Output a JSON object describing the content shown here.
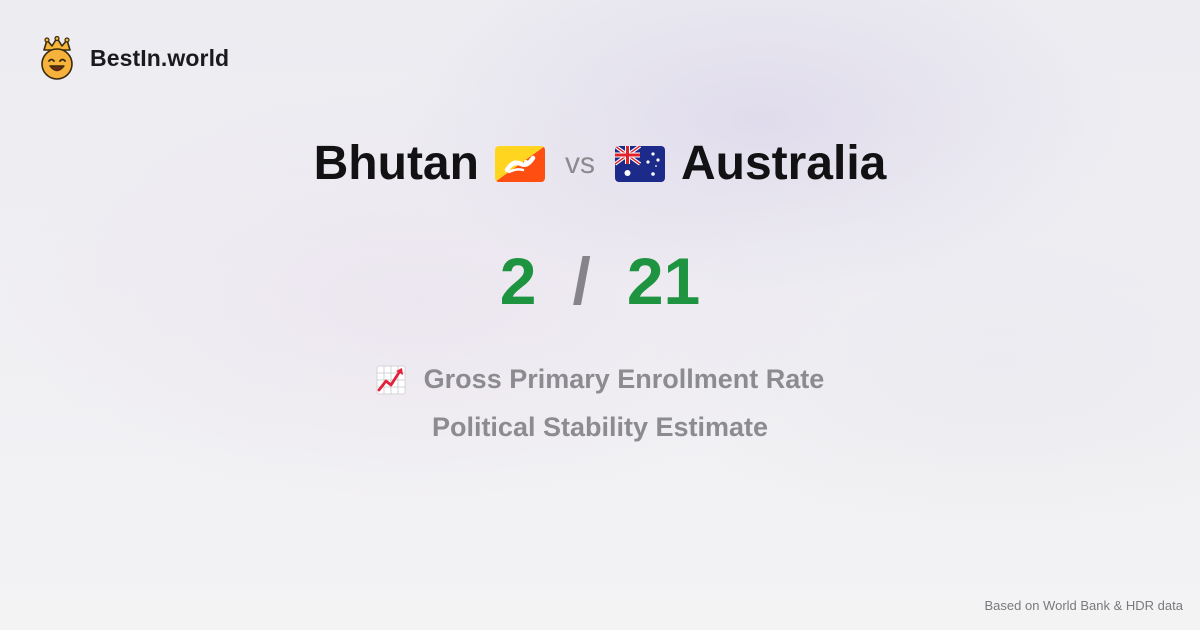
{
  "brand": {
    "name": "BestIn.world",
    "logo_icon": "crown-smiley-icon"
  },
  "comparison": {
    "left_country": "Bhutan",
    "left_flag_icon": "bhutan-flag-icon",
    "vs_label": "vs",
    "right_country": "Australia",
    "right_flag_icon": "australia-flag-icon"
  },
  "scores": {
    "left": "2",
    "separator": "/",
    "right": "21"
  },
  "metrics": [
    {
      "label": "Gross Primary Enrollment Rate",
      "icon": "chart-increasing-icon"
    },
    {
      "label": "Political Stability Estimate"
    }
  ],
  "footer": {
    "source": "Based on World Bank & HDR data"
  },
  "colors": {
    "score": "#1e9340",
    "muted": "#8c8c90",
    "title": "#121214"
  }
}
